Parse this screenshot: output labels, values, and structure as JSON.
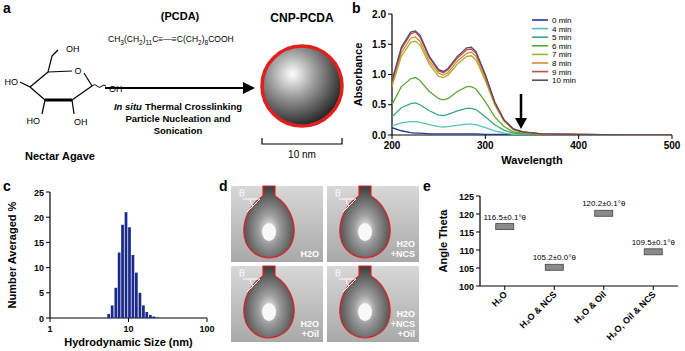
{
  "panel_labels": [
    "a",
    "b",
    "c",
    "d",
    "e"
  ],
  "diagram": {
    "glucose_groups": [
      "OH",
      "O",
      "OH",
      "HO",
      "HO",
      "OH"
    ],
    "source_label": "Nectar Agave",
    "reagent_label": "(PCDA)",
    "formula": [
      {
        "text": "CH"
      },
      {
        "text": "3",
        "sub": true
      },
      {
        "text": "(CH"
      },
      {
        "text": "2",
        "sub": true
      },
      {
        "text": ")"
      },
      {
        "text": "11",
        "sub": true
      },
      {
        "text": "C≡—≡C(CH"
      },
      {
        "text": "2",
        "sub": true
      },
      {
        "text": ")"
      },
      {
        "text": "8",
        "sub": true
      },
      {
        "text": "COOH"
      }
    ],
    "process_italic": "In situ",
    "process_lines": [
      "Thermal Crosslinking",
      "Particle Nucleation and",
      "Sonication"
    ],
    "product_label": "CNP-PCDA",
    "scale_label": "10 nm"
  },
  "chart_data": [
    {
      "type": "line",
      "x": [
        200,
        210,
        220,
        225,
        230,
        240,
        250,
        255,
        260,
        270,
        280,
        285,
        290,
        300,
        310,
        320,
        330,
        340,
        360,
        400,
        450,
        500
      ],
      "series": [
        {
          "name": "0 min",
          "color": "#1f3a93",
          "values": [
            0.12,
            0.07,
            0.04,
            0.03,
            0.03,
            0.02,
            0.02,
            0.02,
            0.02,
            0.02,
            0.02,
            0.02,
            0.02,
            0.01,
            0.01,
            0.01,
            0,
            0,
            0,
            0,
            0,
            0
          ]
        },
        {
          "name": "4 min",
          "color": "#56c2b8",
          "values": [
            0.15,
            0.2,
            0.22,
            0.22,
            0.21,
            0.17,
            0.14,
            0.13,
            0.14,
            0.16,
            0.18,
            0.18,
            0.17,
            0.12,
            0.07,
            0.03,
            0.01,
            0.01,
            0,
            0,
            0,
            0
          ]
        },
        {
          "name": "5 min",
          "color": "#3aa87a",
          "values": [
            0.3,
            0.45,
            0.52,
            0.53,
            0.5,
            0.4,
            0.33,
            0.32,
            0.34,
            0.4,
            0.44,
            0.44,
            0.42,
            0.3,
            0.17,
            0.08,
            0.03,
            0.02,
            0.01,
            0,
            0,
            0
          ]
        },
        {
          "name": "6 min",
          "color": "#5aa832",
          "values": [
            0.5,
            0.8,
            0.93,
            0.95,
            0.9,
            0.72,
            0.6,
            0.58,
            0.6,
            0.72,
            0.8,
            0.8,
            0.76,
            0.55,
            0.3,
            0.14,
            0.05,
            0.03,
            0.01,
            0,
            0,
            0
          ]
        },
        {
          "name": "7 min",
          "color": "#a5b030",
          "values": [
            0.8,
            1.3,
            1.53,
            1.55,
            1.49,
            1.17,
            0.97,
            0.95,
            0.99,
            1.17,
            1.3,
            1.31,
            1.24,
            0.9,
            0.5,
            0.23,
            0.09,
            0.04,
            0.02,
            0.01,
            0,
            0
          ]
        },
        {
          "name": "8 min",
          "color": "#e08a2c",
          "values": [
            0.85,
            1.36,
            1.6,
            1.62,
            1.55,
            1.22,
            1.02,
            0.99,
            1.03,
            1.22,
            1.35,
            1.37,
            1.3,
            0.94,
            0.52,
            0.24,
            0.09,
            0.05,
            0.02,
            0.01,
            0,
            0
          ]
        },
        {
          "name": "9 min",
          "color": "#c0504d",
          "values": [
            0.88,
            1.42,
            1.67,
            1.7,
            1.62,
            1.28,
            1.06,
            1.03,
            1.08,
            1.27,
            1.41,
            1.42,
            1.35,
            0.98,
            0.54,
            0.25,
            0.1,
            0.05,
            0.02,
            0.01,
            0,
            0
          ]
        },
        {
          "name": "10 min",
          "color": "#5a4a6a",
          "values": [
            0.9,
            1.45,
            1.7,
            1.72,
            1.65,
            1.3,
            1.08,
            1.05,
            1.1,
            1.3,
            1.44,
            1.45,
            1.38,
            1.0,
            0.55,
            0.25,
            0.1,
            0.05,
            0.02,
            0.01,
            0,
            0
          ]
        }
      ],
      "xlim": [
        200,
        500
      ],
      "ylim": [
        0,
        2
      ],
      "xticks": [
        200,
        300,
        400,
        500
      ],
      "yticks": [
        {
          "value": 0,
          "label": "0.0"
        },
        0.5,
        {
          "value": 1,
          "label": "1.0"
        },
        1.5,
        {
          "value": 2,
          "label": "2.0"
        }
      ],
      "x_label": "Wavelength",
      "y_label": "Absorbance",
      "legend": "top-right",
      "grid": false
    },
    {
      "type": "bar",
      "x": [
        5.6,
        6.2,
        6.9,
        7.6,
        8.4,
        9.3,
        10.3,
        11.4,
        12.6,
        14.0,
        15.5,
        17.1,
        19.0,
        21.0,
        23.2
      ],
      "values": [
        0.8,
        2.5,
        6,
        13,
        18.5,
        21,
        18,
        12.5,
        9,
        5,
        2.5,
        1.2,
        0.6,
        0.3,
        0.1
      ],
      "color": "#1a2a8a",
      "log": "x",
      "xlim": [
        1,
        100
      ],
      "ylim": [
        0,
        25
      ],
      "xticks": [
        1,
        10,
        100
      ],
      "yticks": [
        0,
        5,
        10,
        15,
        20,
        25
      ],
      "x_label": "Hydrodynamic Size (nm)",
      "y_label": "Number Averaged %",
      "grid": false
    },
    {
      "type": "scatter",
      "categories": [
        "H₂O",
        "H₂O & NCS",
        "H₂O & Oil",
        "H₂O, Oil & NCS"
      ],
      "values": [
        116.5,
        105.2,
        120.2,
        109.5
      ],
      "errors": [
        0.1,
        0.0,
        0.1,
        0.1
      ],
      "value_labels": [
        "116.5±0.1°θ",
        "105.2±0.0°θ",
        "120.2±0.1°θ",
        "109.5±0.1°θ"
      ],
      "data_labels": true,
      "color": "#8a8a8a",
      "marker": "box",
      "ylim": [
        100,
        125
      ],
      "yticks": [
        100,
        105,
        110,
        115,
        120,
        125
      ],
      "y_label": "Angle Theta",
      "grid": false
    }
  ],
  "images": [
    {
      "lines": [
        "H2O"
      ]
    },
    {
      "lines": [
        "H2O",
        "+NCS"
      ]
    },
    {
      "lines": [
        "H2O",
        "+Oil"
      ]
    },
    {
      "lines": [
        "H2O",
        "+NCS",
        "+Oil"
      ]
    }
  ],
  "angle_symbol": "θ"
}
